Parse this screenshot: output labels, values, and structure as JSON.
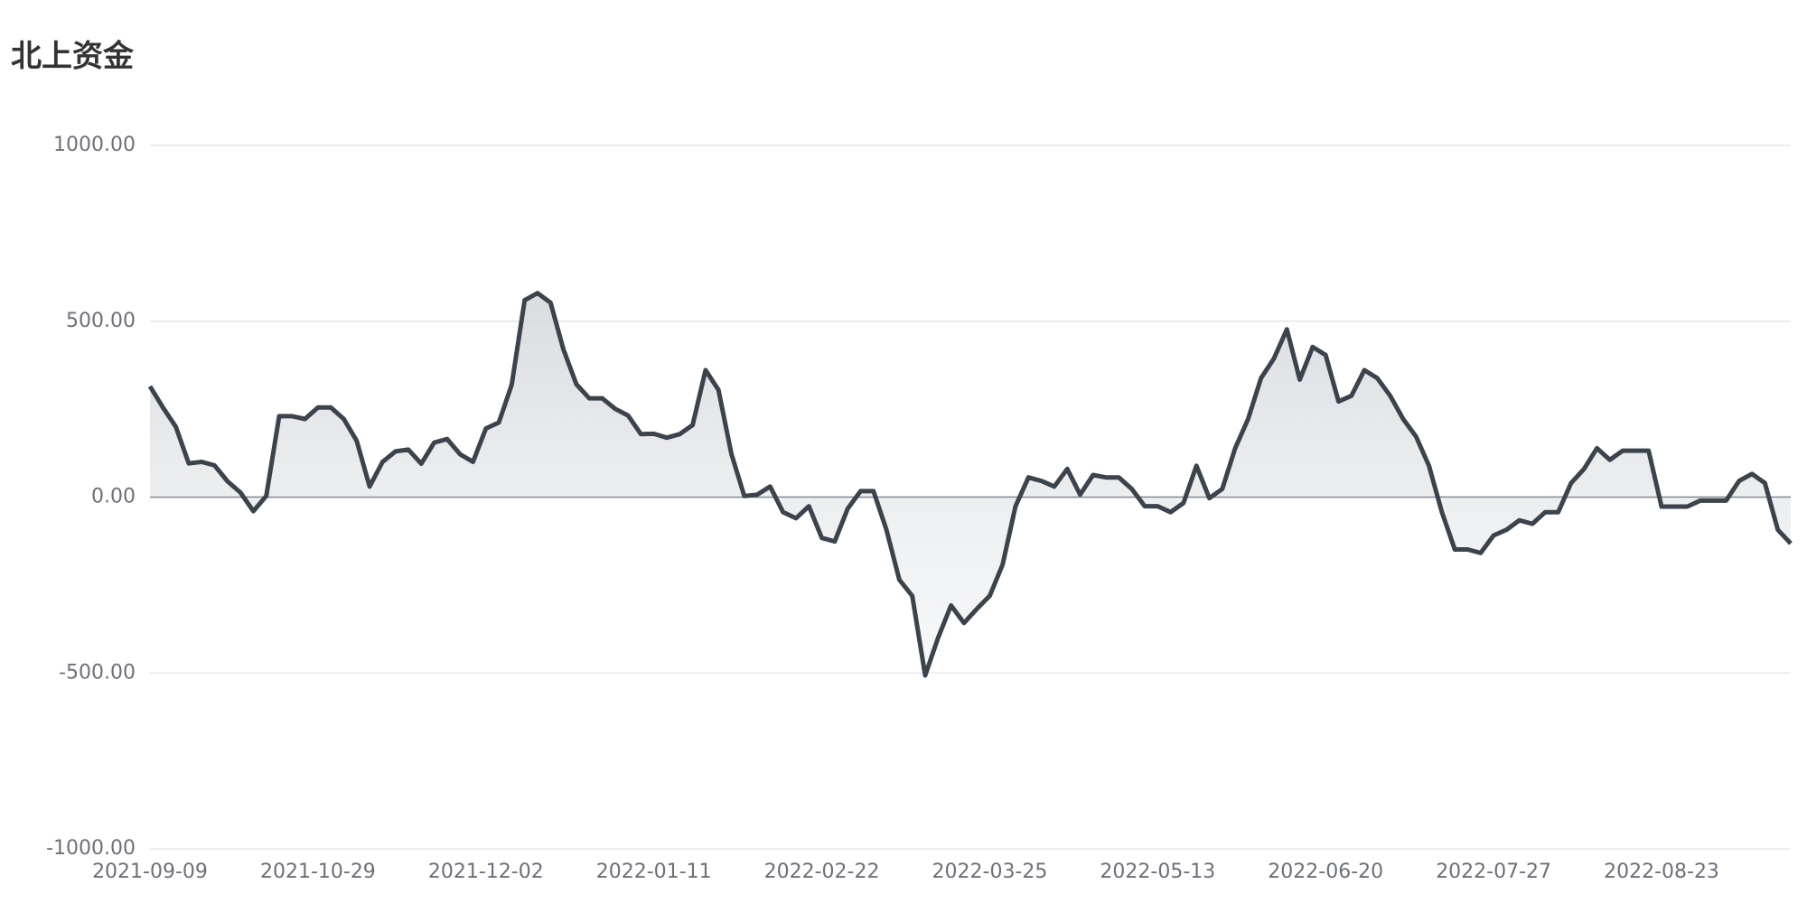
{
  "chart_data": {
    "type": "line",
    "title": "北上资金",
    "categories": [
      "2021-09-09",
      null,
      null,
      null,
      null,
      null,
      null,
      null,
      null,
      null,
      null,
      null,
      null,
      "2021-10-29",
      null,
      null,
      null,
      null,
      null,
      null,
      null,
      null,
      null,
      null,
      null,
      null,
      "2021-12-02",
      null,
      null,
      null,
      null,
      null,
      null,
      null,
      null,
      null,
      null,
      null,
      null,
      "2022-01-11",
      null,
      null,
      null,
      null,
      null,
      null,
      null,
      null,
      null,
      null,
      null,
      null,
      "2022-02-22",
      null,
      null,
      null,
      null,
      null,
      null,
      null,
      null,
      null,
      null,
      null,
      null,
      "2022-03-25",
      null,
      null,
      null,
      null,
      null,
      null,
      null,
      null,
      null,
      null,
      null,
      null,
      "2022-05-13",
      null,
      null,
      null,
      null,
      null,
      null,
      null,
      null,
      null,
      null,
      null,
      null,
      "2022-06-20",
      null,
      null,
      null,
      null,
      null,
      null,
      null,
      null,
      null,
      null,
      null,
      null,
      "2022-07-27",
      null,
      null,
      null,
      null,
      null,
      null,
      null,
      null,
      null,
      null,
      null,
      null,
      "2022-08-23",
      null,
      null,
      null,
      null,
      null,
      null,
      null,
      null,
      null,
      null
    ],
    "values": [
      315,
      255,
      200,
      96,
      100,
      90,
      45,
      13,
      -40,
      3,
      230,
      230,
      222,
      255,
      255,
      222,
      160,
      30,
      100,
      130,
      135,
      95,
      155,
      165,
      122,
      100,
      195,
      212,
      320,
      560,
      580,
      553,
      420,
      321,
      281,
      281,
      251,
      232,
      179,
      180,
      169,
      179,
      205,
      361,
      305,
      123,
      3,
      7,
      30,
      -43,
      -60,
      -26,
      -116,
      -126,
      -33,
      17,
      17,
      -93,
      -235,
      -281,
      -507,
      -400,
      -308,
      -358,
      -318,
      -281,
      -192,
      -26,
      56,
      46,
      30,
      80,
      7,
      63,
      56,
      56,
      23,
      -26,
      -26,
      -43,
      -17,
      89,
      -3,
      23,
      139,
      222,
      338,
      394,
      477,
      334,
      427,
      404,
      272,
      288,
      361,
      338,
      288,
      222,
      172,
      89,
      -43,
      -149,
      -149,
      -159,
      -109,
      -93,
      -66,
      -76,
      -43,
      -43,
      40,
      80,
      139,
      106,
      132,
      132,
      132,
      -27,
      -27,
      -27,
      -10,
      -10,
      -10,
      46,
      66,
      40,
      -93,
      -132
    ],
    "color": "#3b434c",
    "ylim": [
      -1000,
      1000
    ],
    "yticks": [
      {
        "value": -1000,
        "label": "-1000.00"
      },
      {
        "value": -500,
        "label": "-500.00"
      },
      {
        "value": 0,
        "label": "0.00"
      },
      {
        "value": 500,
        "label": "500.00"
      },
      {
        "value": 1000,
        "label": "1000.00"
      }
    ],
    "grid": true
  }
}
